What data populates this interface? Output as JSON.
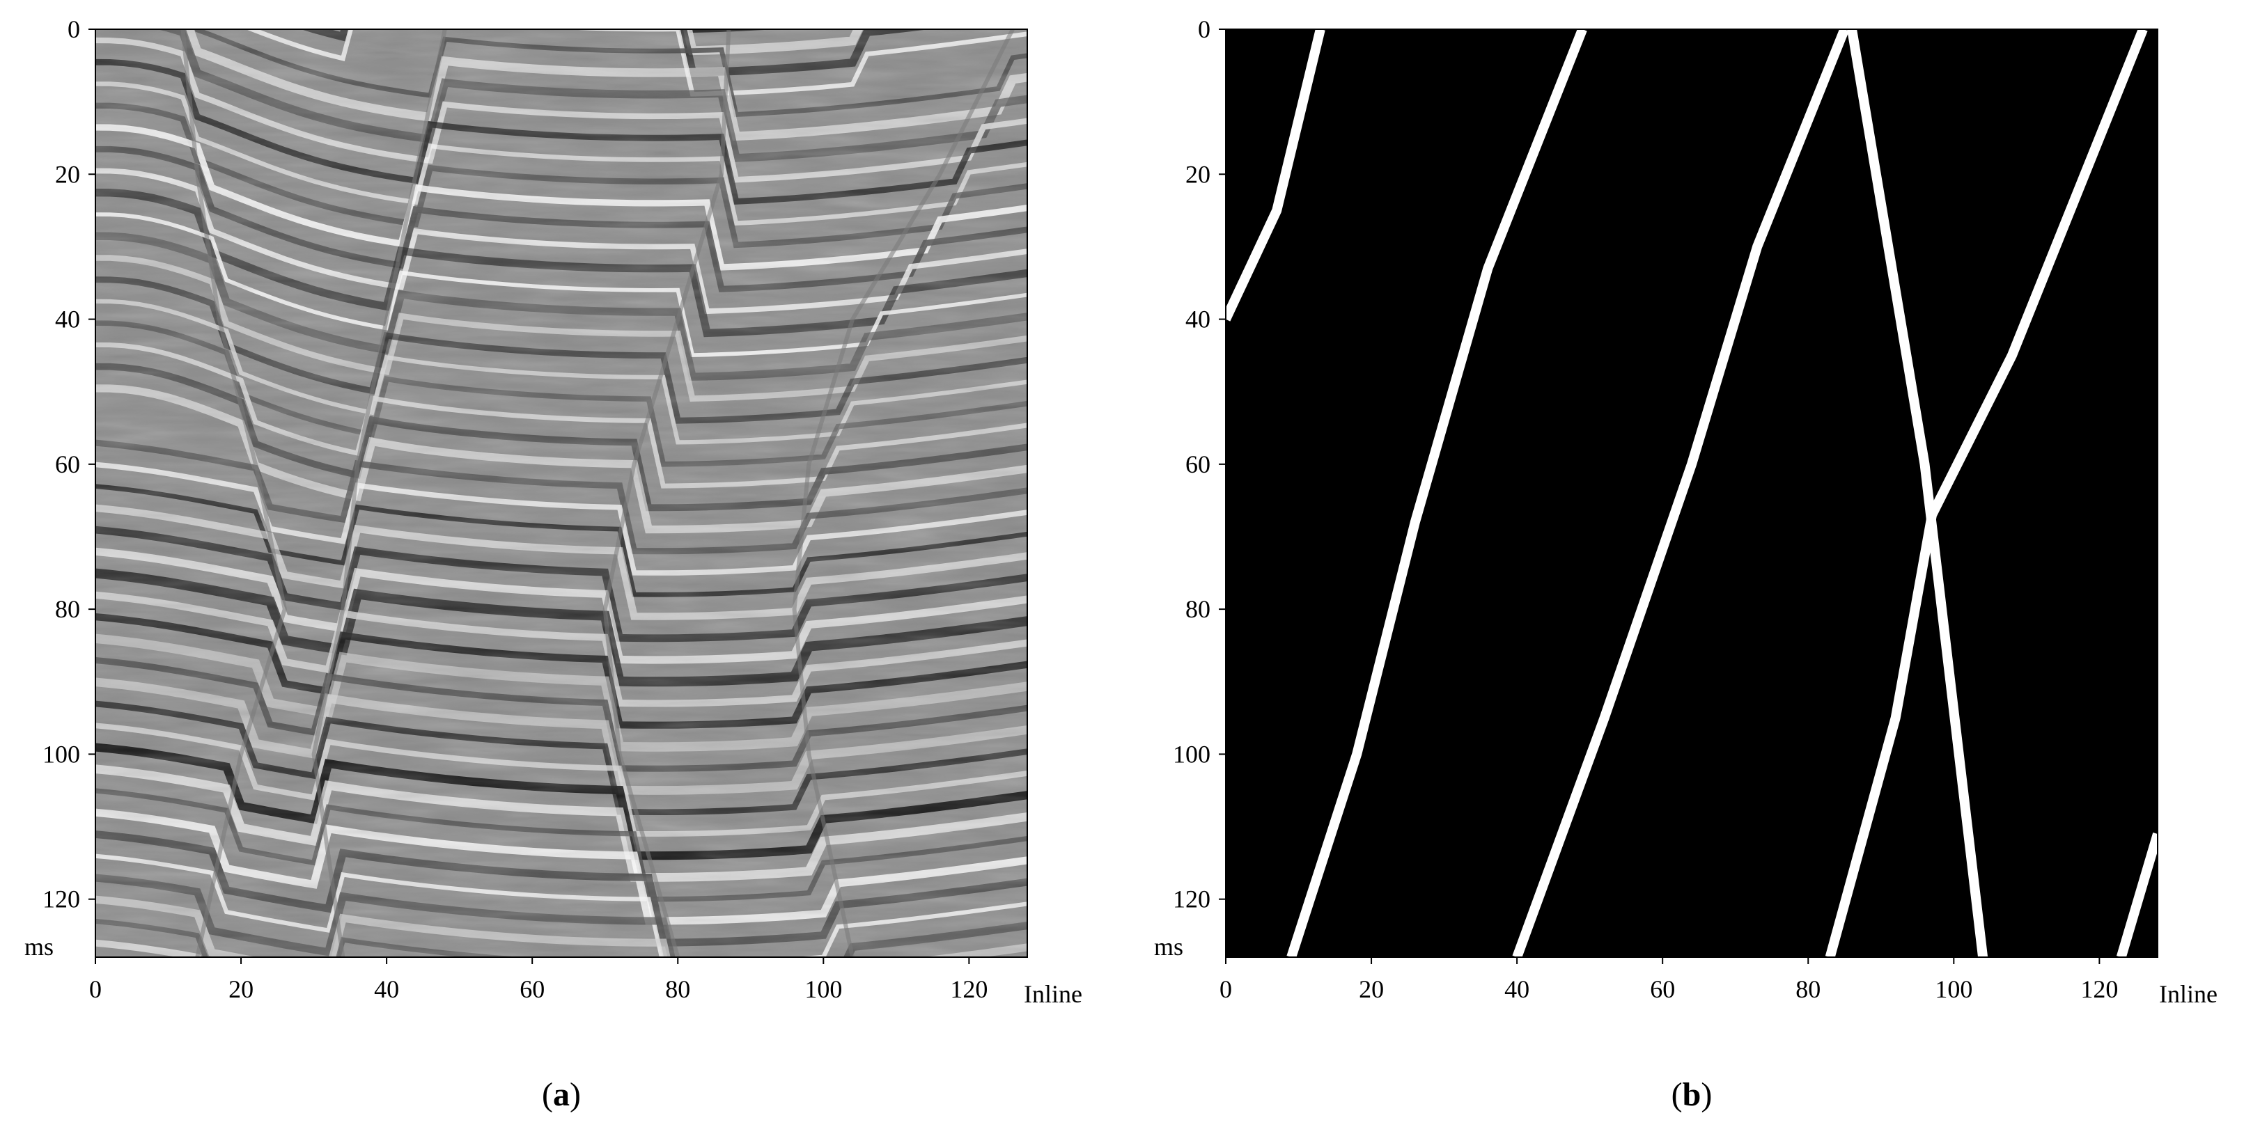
{
  "panels": [
    {
      "id": "a",
      "caption": "(a)",
      "caption_letter": "a",
      "kind": "seismic-section",
      "x_axis": {
        "label": "Inline",
        "ticks": [
          "0",
          "20",
          "40",
          "60",
          "80",
          "100",
          "120"
        ],
        "range": [
          0,
          128
        ]
      },
      "y_axis": {
        "unit_label": "ms",
        "ticks": [
          "0",
          "20",
          "40",
          "60",
          "80",
          "100",
          "120"
        ],
        "range": [
          0,
          128
        ],
        "inverted": true
      },
      "colormap": "grayscale",
      "faults_inline_at_time": [
        {
          "name": "fault-1",
          "points": [
            [
              12,
              0
            ],
            [
              14,
              20
            ],
            [
              17,
              40
            ],
            [
              22,
              60
            ],
            [
              26,
              80
            ],
            [
              20,
              100
            ],
            [
              14,
              128
            ]
          ]
        },
        {
          "name": "fault-2",
          "points": [
            [
              48,
              0
            ],
            [
              44,
              20
            ],
            [
              40,
              40
            ],
            [
              36,
              60
            ],
            [
              34,
              80
            ],
            [
              30,
              100
            ],
            [
              34,
              128
            ]
          ]
        },
        {
          "name": "fault-3",
          "points": [
            [
              87,
              0
            ],
            [
              86,
              20
            ],
            [
              80,
              40
            ],
            [
              74,
              60
            ],
            [
              70,
              80
            ],
            [
              72,
              100
            ],
            [
              80,
              128
            ]
          ]
        },
        {
          "name": "fault-4",
          "points": [
            [
              126,
              0
            ],
            [
              116,
              20
            ],
            [
              104,
              40
            ],
            [
              98,
              60
            ],
            [
              96,
              80
            ],
            [
              98,
              100
            ],
            [
              104,
              128
            ]
          ]
        }
      ]
    },
    {
      "id": "b",
      "caption": "(b)",
      "caption_letter": "b",
      "kind": "fault-mask",
      "x_axis": {
        "label": "Inline",
        "ticks": [
          "0",
          "20",
          "40",
          "60",
          "80",
          "100",
          "120"
        ],
        "range": [
          0,
          128
        ]
      },
      "y_axis": {
        "unit_label": "ms",
        "ticks": [
          "0",
          "20",
          "40",
          "60",
          "80",
          "100",
          "120"
        ],
        "range": [
          0,
          128
        ],
        "inverted": true
      },
      "background_color": "#000000",
      "line_color": "#ffffff",
      "fault_lines": [
        {
          "name": "fault-line-1",
          "points": [
            [
              13,
              0
            ],
            [
              7,
              25
            ],
            [
              0,
              40
            ]
          ]
        },
        {
          "name": "fault-line-2",
          "points": [
            [
              49,
              0
            ],
            [
              36,
              33
            ],
            [
              26,
              68
            ],
            [
              18,
              100
            ],
            [
              9,
              128
            ]
          ]
        },
        {
          "name": "fault-line-3",
          "points": [
            [
              85,
              0
            ],
            [
              73,
              30
            ],
            [
              64,
              60
            ],
            [
              52,
              95
            ],
            [
              40,
              128
            ]
          ]
        },
        {
          "name": "fault-line-4",
          "points": [
            [
              86,
              0
            ],
            [
              96,
              60
            ],
            [
              104,
              128
            ]
          ]
        },
        {
          "name": "fault-line-5",
          "points": [
            [
              126,
              0
            ],
            [
              108,
              45
            ],
            [
              97,
              67
            ],
            [
              92,
              95
            ],
            [
              83,
              128
            ]
          ]
        },
        {
          "name": "fault-line-6",
          "points": [
            [
              128,
              111
            ],
            [
              123,
              128
            ]
          ]
        }
      ]
    }
  ]
}
